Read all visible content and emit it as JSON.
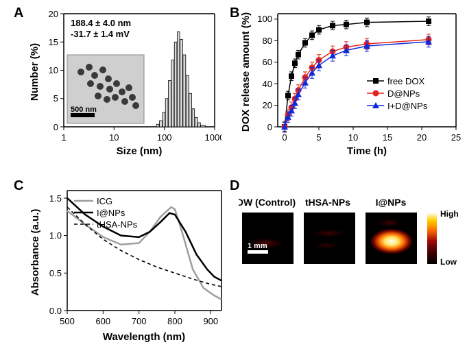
{
  "panelA": {
    "label": "A",
    "type": "histogram",
    "x_label": "Size (nm)",
    "y_label": "Number (%)",
    "x_scale": "log",
    "x_ticks": [
      1,
      10,
      100,
      1000
    ],
    "y_ticks": [
      0,
      5,
      10,
      15,
      20
    ],
    "ylim": [
      0,
      22
    ],
    "annot_line1": "188.4 ± 4.0 nm",
    "annot_line2": "-31.7 ± 1.4 mV",
    "annot_fontsize": 13,
    "scalebar_label": "500 nm",
    "bars": [
      {
        "x": 70,
        "h": 0.5
      },
      {
        "x": 80,
        "h": 1.2
      },
      {
        "x": 92,
        "h": 2.8
      },
      {
        "x": 105,
        "h": 5.5
      },
      {
        "x": 120,
        "h": 9
      },
      {
        "x": 138,
        "h": 13
      },
      {
        "x": 158,
        "h": 16.5
      },
      {
        "x": 180,
        "h": 18.5
      },
      {
        "x": 205,
        "h": 17
      },
      {
        "x": 235,
        "h": 14
      },
      {
        "x": 270,
        "h": 10
      },
      {
        "x": 310,
        "h": 6.5
      },
      {
        "x": 355,
        "h": 3.5
      },
      {
        "x": 405,
        "h": 1.8
      },
      {
        "x": 465,
        "h": 0.8
      },
      {
        "x": 530,
        "h": 0.3
      }
    ],
    "bar_fill": "#d9d9d9",
    "bar_stroke": "#000000"
  },
  "panelB": {
    "label": "B",
    "type": "line",
    "x_label": "Time (h)",
    "y_label": "DOX release amount (%)",
    "x_ticks": [
      0,
      5,
      10,
      15,
      20,
      25
    ],
    "y_ticks": [
      0,
      20,
      40,
      60,
      80,
      100
    ],
    "xlim": [
      -1,
      25
    ],
    "ylim": [
      0,
      105
    ],
    "series": [
      {
        "name": "free DOX",
        "color": "#000000",
        "marker": "square",
        "points": [
          [
            0,
            0
          ],
          [
            0.5,
            29
          ],
          [
            1,
            47
          ],
          [
            1.5,
            59
          ],
          [
            2,
            67
          ],
          [
            3,
            78
          ],
          [
            4,
            85
          ],
          [
            5,
            90
          ],
          [
            7,
            94
          ],
          [
            9,
            95
          ],
          [
            12,
            97
          ],
          [
            21,
            98
          ]
        ],
        "err": 4
      },
      {
        "name": "D@NPs",
        "color": "#e3241b",
        "marker": "circle",
        "points": [
          [
            0,
            0
          ],
          [
            0.5,
            11
          ],
          [
            1,
            18
          ],
          [
            1.5,
            26
          ],
          [
            2,
            34
          ],
          [
            3,
            46
          ],
          [
            4,
            55
          ],
          [
            5,
            62
          ],
          [
            7,
            70
          ],
          [
            9,
            74
          ],
          [
            12,
            77
          ],
          [
            21,
            81
          ]
        ],
        "err": 5
      },
      {
        "name": "I+D@NPs",
        "color": "#1029d8",
        "marker": "triangle",
        "points": [
          [
            0,
            0
          ],
          [
            0.5,
            9
          ],
          [
            1,
            15
          ],
          [
            1.5,
            22
          ],
          [
            2,
            30
          ],
          [
            3,
            41
          ],
          [
            4,
            50
          ],
          [
            5,
            57
          ],
          [
            7,
            66
          ],
          [
            9,
            71
          ],
          [
            12,
            75
          ],
          [
            21,
            79
          ]
        ],
        "err": 5
      }
    ],
    "marker_size": 5,
    "line_width": 1.5
  },
  "panelC": {
    "label": "C",
    "type": "line",
    "x_label": "Wavelength (nm)",
    "y_label": "Absorbance (a.u.)",
    "x_ticks": [
      500,
      600,
      700,
      800,
      900
    ],
    "y_ticks": [
      0.0,
      0.5,
      1.0,
      1.5
    ],
    "xlim": [
      500,
      930
    ],
    "ylim": [
      0,
      1.6
    ],
    "series": [
      {
        "name": "ICG",
        "color": "#9e9e9e",
        "dash": "none",
        "width": 2.5,
        "points": [
          [
            500,
            1.33
          ],
          [
            550,
            1.15
          ],
          [
            600,
            0.98
          ],
          [
            650,
            0.88
          ],
          [
            700,
            0.9
          ],
          [
            730,
            1.05
          ],
          [
            760,
            1.25
          ],
          [
            790,
            1.38
          ],
          [
            800,
            1.35
          ],
          [
            820,
            1.05
          ],
          [
            850,
            0.55
          ],
          [
            880,
            0.3
          ],
          [
            910,
            0.2
          ],
          [
            930,
            0.15
          ]
        ]
      },
      {
        "name": "I@NPs",
        "color": "#000000",
        "dash": "none",
        "width": 2.5,
        "points": [
          [
            500,
            1.5
          ],
          [
            550,
            1.28
          ],
          [
            600,
            1.12
          ],
          [
            650,
            1.0
          ],
          [
            700,
            0.98
          ],
          [
            730,
            1.05
          ],
          [
            760,
            1.18
          ],
          [
            785,
            1.3
          ],
          [
            800,
            1.28
          ],
          [
            830,
            1.05
          ],
          [
            860,
            0.75
          ],
          [
            890,
            0.55
          ],
          [
            910,
            0.45
          ],
          [
            930,
            0.4
          ]
        ]
      },
      {
        "name": "tHSA-NPs",
        "color": "#000000",
        "dash": "5,4",
        "width": 1.6,
        "points": [
          [
            500,
            1.38
          ],
          [
            550,
            1.15
          ],
          [
            600,
            0.95
          ],
          [
            650,
            0.8
          ],
          [
            700,
            0.68
          ],
          [
            750,
            0.58
          ],
          [
            800,
            0.5
          ],
          [
            850,
            0.42
          ],
          [
            900,
            0.35
          ],
          [
            930,
            0.32
          ]
        ]
      }
    ]
  },
  "panelD": {
    "label": "D",
    "titles": [
      "DW (Control)",
      "tHSA-NPs",
      "I@NPs"
    ],
    "title_fontsize": 14,
    "scalebar_label": "1 mm",
    "colorbar_high": "High",
    "colorbar_low": "Low",
    "colormap_stops": [
      {
        "p": 0.0,
        "c": "#000000"
      },
      {
        "p": 0.25,
        "c": "#4a0202"
      },
      {
        "p": 0.45,
        "c": "#a00808"
      },
      {
        "p": 0.65,
        "c": "#ff6a00"
      },
      {
        "p": 0.85,
        "c": "#ffd000"
      },
      {
        "p": 1.0,
        "c": "#ffffff"
      }
    ]
  }
}
